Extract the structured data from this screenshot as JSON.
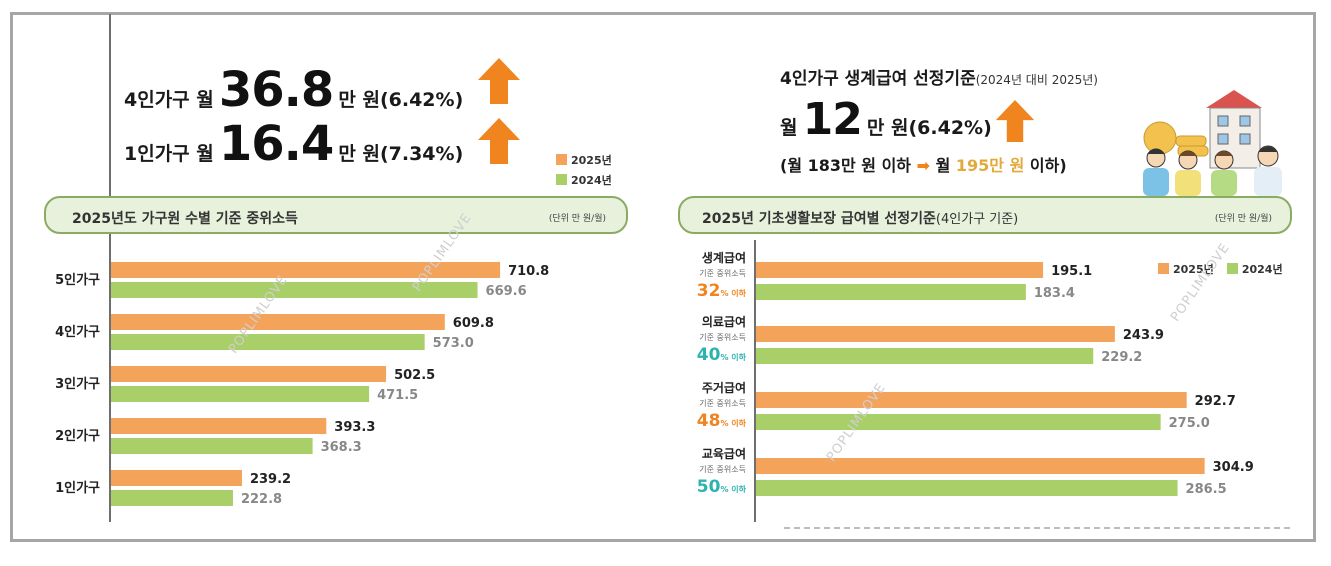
{
  "colors": {
    "y2025": "#f4a35a",
    "y2024": "#a9cf68",
    "arrow": "#f0841e",
    "pct_orange": "#f0841e",
    "pct_teal": "#2bb3b0",
    "highlight": "#e2a93b"
  },
  "left": {
    "line1": {
      "prefix": "4인가구 월",
      "value": "36.8",
      "suffix": "만 원(6.42%)"
    },
    "line2": {
      "prefix": "1인가구 월",
      "value": "16.4",
      "suffix": "만 원(7.34%)"
    },
    "legend": [
      "2025년",
      "2024년"
    ],
    "section_title": "2025년도 가구원 수별 기준 중위소득",
    "unit": "(단위 만 원/월)"
  },
  "right": {
    "headline": "4인가구 생계급여 선정기준",
    "headline_small": "(2024년 대비 2025년)",
    "month_prefix": "월",
    "month_value": "12",
    "month_suffix": "만 원(6.42%)",
    "sub_prefix": "(월 183만 원 이하",
    "sub_arrow": "➡",
    "sub_mid": "월",
    "sub_highlight": "195만 원",
    "sub_suffix": "이하)",
    "section_title": "2025년 기초생활보장 급여별 선정기준",
    "section_title_small": "(4인가구 기준)",
    "unit": "(단위 만 원/월)",
    "legend": [
      "2025년",
      "2024년"
    ]
  },
  "watermark": "POPLIMLOVE",
  "chart_data": [
    {
      "type": "bar",
      "title": "2025년도 가구원 수별 기준 중위소득",
      "orientation": "horizontal",
      "categories": [
        "5인가구",
        "4인가구",
        "3인가구",
        "2인가구",
        "1인가구"
      ],
      "series": [
        {
          "name": "2025년",
          "values": [
            710.8,
            609.8,
            502.5,
            393.3,
            239.2
          ]
        },
        {
          "name": "2024년",
          "values": [
            669.6,
            573.0,
            471.5,
            368.3,
            222.8
          ]
        }
      ],
      "value_labels": {
        "2025년": [
          "710.8",
          "609.8",
          "502.5",
          "393.3",
          "239.2"
        ],
        "2024년": [
          "669.6",
          "573.0",
          "471.5",
          "368.3",
          "222.8"
        ]
      },
      "legend": "top-right",
      "grid": false
    },
    {
      "type": "bar",
      "title": "2025년 기초생활보장 급여별 선정기준",
      "orientation": "horizontal",
      "categories": [
        "생계급여",
        "의료급여",
        "주거급여",
        "교육급여"
      ],
      "category_notes": [
        "기준 중위소득",
        "기준 중위소득",
        "기준 중위소득",
        "기준 중위소득"
      ],
      "category_percents": [
        "32",
        "40",
        "48",
        "50"
      ],
      "percent_unit": "% 이하",
      "series": [
        {
          "name": "2025년",
          "values": [
            195.1,
            243.9,
            292.7,
            304.9
          ]
        },
        {
          "name": "2024년",
          "values": [
            183.4,
            229.2,
            275.0,
            286.5
          ]
        }
      ],
      "value_labels": {
        "2025년": [
          "195.1",
          "243.9",
          "292.7",
          "304.9"
        ],
        "2024년": [
          "183.4",
          "229.2",
          "275.0",
          "286.5"
        ]
      },
      "legend": "top-right",
      "grid": false
    }
  ]
}
